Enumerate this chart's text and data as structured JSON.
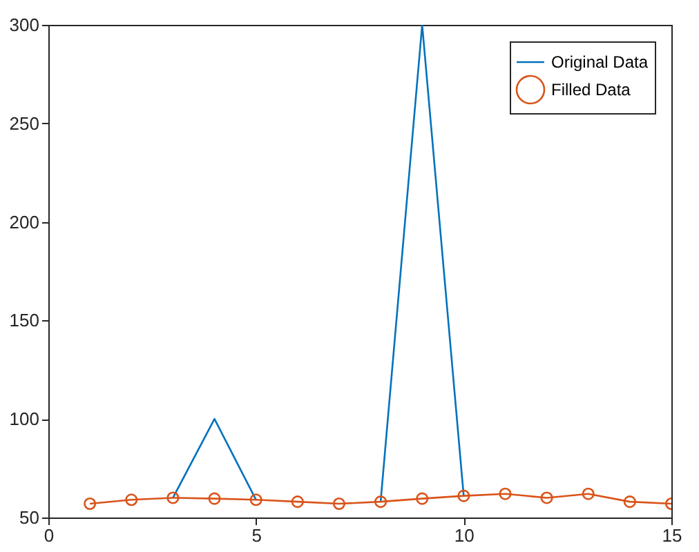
{
  "chart_data": {
    "type": "line",
    "x": [
      1,
      2,
      3,
      4,
      5,
      6,
      7,
      8,
      9,
      10,
      11,
      12,
      13,
      14,
      15
    ],
    "series": [
      {
        "name": "Original Data",
        "color": "#0072bd",
        "marker": "none",
        "values": [
          null,
          null,
          60,
          100,
          59,
          null,
          null,
          58,
          300,
          61,
          null,
          null,
          null,
          null,
          null
        ]
      },
      {
        "name": "Filled Data",
        "color": "#d95319",
        "marker": "circle",
        "values": [
          57,
          59,
          60,
          59.6,
          59,
          58,
          57,
          58,
          59.6,
          61,
          62,
          60,
          62,
          58,
          57
        ]
      }
    ],
    "xlim": [
      0,
      15
    ],
    "xticks": [
      0,
      5,
      10,
      15
    ],
    "ylim": [
      50,
      300
    ],
    "yticks": [
      50,
      100,
      150,
      200,
      250,
      300
    ],
    "grid": false,
    "legend": "top right"
  }
}
